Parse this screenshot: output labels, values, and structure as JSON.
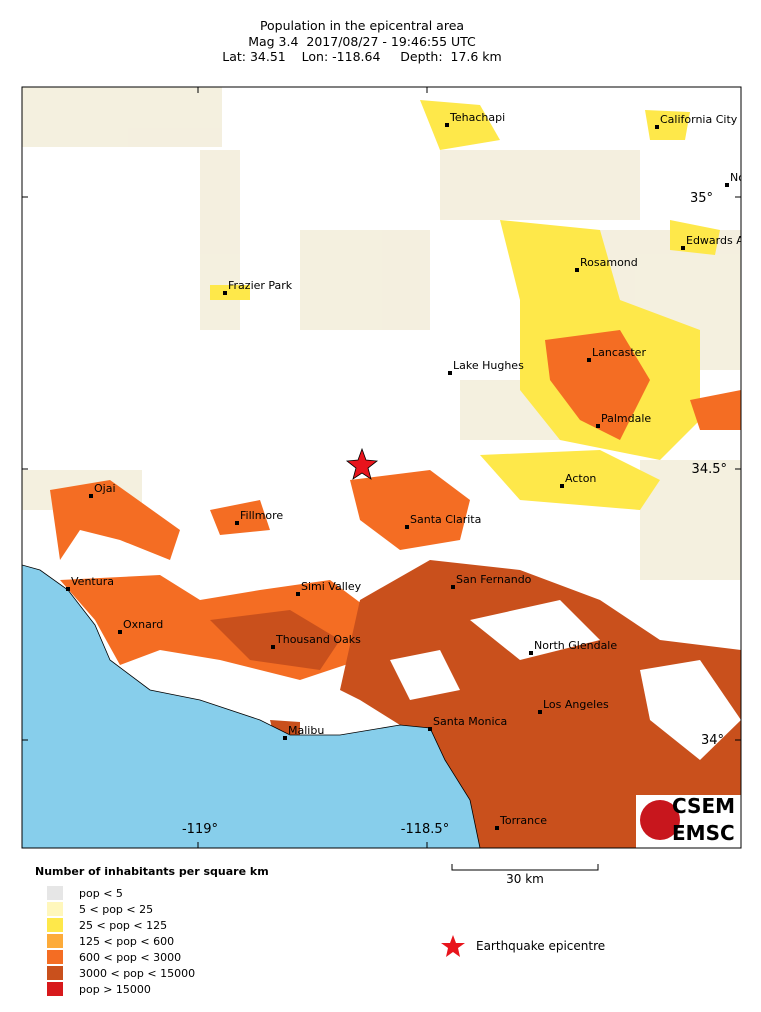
{
  "header": {
    "title": "Population in the epicentral area",
    "event": "Mag 3.4  2017/08/27 - 19:46:55 UTC",
    "location": "Lat: 34.51    Lon: -118.64     Depth:  17.6 km"
  },
  "map": {
    "cities": [
      {
        "label": "Tehachapi"
      },
      {
        "label": "California City"
      },
      {
        "label": "No"
      },
      {
        "label": "Edwards A"
      },
      {
        "label": "Rosamond"
      },
      {
        "label": "Frazier Park"
      },
      {
        "label": "Lake Hughes"
      },
      {
        "label": "Lancaster"
      },
      {
        "label": "Palmdale"
      },
      {
        "label": "Acton"
      },
      {
        "label": "Ojai"
      },
      {
        "label": "Fillmore"
      },
      {
        "label": "Santa Clarita"
      },
      {
        "label": "San Fernando"
      },
      {
        "label": "Ventura"
      },
      {
        "label": "Simi Valley"
      },
      {
        "label": "Oxnard"
      },
      {
        "label": "Thousand Oaks"
      },
      {
        "label": "North Glendale"
      },
      {
        "label": "Los Angeles"
      },
      {
        "label": "Santa Monica"
      },
      {
        "label": "Malibu"
      },
      {
        "label": "Torrance"
      }
    ],
    "grid_labels": [
      "35°",
      "34.5°",
      "34°",
      "-119°",
      "-118.5°"
    ]
  },
  "legend": {
    "title": "Number of inhabitants per square km",
    "items": [
      {
        "label": "pop < 5",
        "color": "#e6e6e6"
      },
      {
        "label": "5 < pop < 25",
        "color": "#fff7bc"
      },
      {
        "label": "25 < pop < 125",
        "color": "#fee84a"
      },
      {
        "label": "125 < pop < 600",
        "color": "#fdab3a"
      },
      {
        "label": "600 < pop < 3000",
        "color": "#f46d23"
      },
      {
        "label": "3000 < pop < 15000",
        "color": "#c9501c"
      },
      {
        "label": "pop > 15000",
        "color": "#d7191c"
      }
    ]
  },
  "scale_bar": "30 km",
  "epicentre_label": "Earthquake epicentre",
  "logo": [
    "CSEM",
    "EMSC"
  ]
}
